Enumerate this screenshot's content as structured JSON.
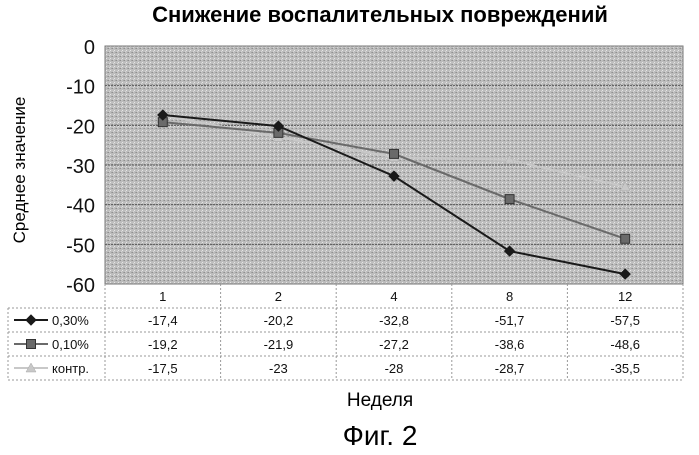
{
  "chart_data": {
    "type": "line",
    "title": "Снижение воспалительных повреждений",
    "ylabel": "Среднее значение",
    "xlabel": "Неделя",
    "categories": [
      "1",
      "2",
      "4",
      "8",
      "12"
    ],
    "ylim": [
      -60,
      0
    ],
    "yticks": [
      "0",
      "-10",
      "-20",
      "-30",
      "-40",
      "-50",
      "-60"
    ],
    "ytick_values": [
      0,
      -10,
      -20,
      -30,
      -40,
      -50,
      -60
    ],
    "grid": true,
    "legend": "data-table-below",
    "series": [
      {
        "name": "0,30%",
        "values": [
          -17.4,
          -20.2,
          -32.8,
          -51.7,
          -57.5
        ],
        "labels": [
          "-17,4",
          "-20,2",
          "-32,8",
          "-51,7",
          "-57,5"
        ],
        "color": "#1a1a1a",
        "marker": "diamond"
      },
      {
        "name": "0,10%",
        "values": [
          -19.2,
          -21.9,
          -27.2,
          -38.6,
          -48.6
        ],
        "labels": [
          "-19,2",
          "-21,9",
          "-27,2",
          "-38,6",
          "-48,6"
        ],
        "color": "#6a6a6a",
        "marker": "square"
      },
      {
        "name": "контр.",
        "values": [
          -17.5,
          -23,
          -28,
          -28.7,
          -35.5
        ],
        "labels": [
          "-17,5",
          "-23",
          "-28",
          "-28,7",
          "-35,5"
        ],
        "color": "#c8c8c8",
        "marker": "triangle"
      }
    ],
    "plot_background": "#bdbdbd"
  },
  "caption": "Фиг. 2"
}
